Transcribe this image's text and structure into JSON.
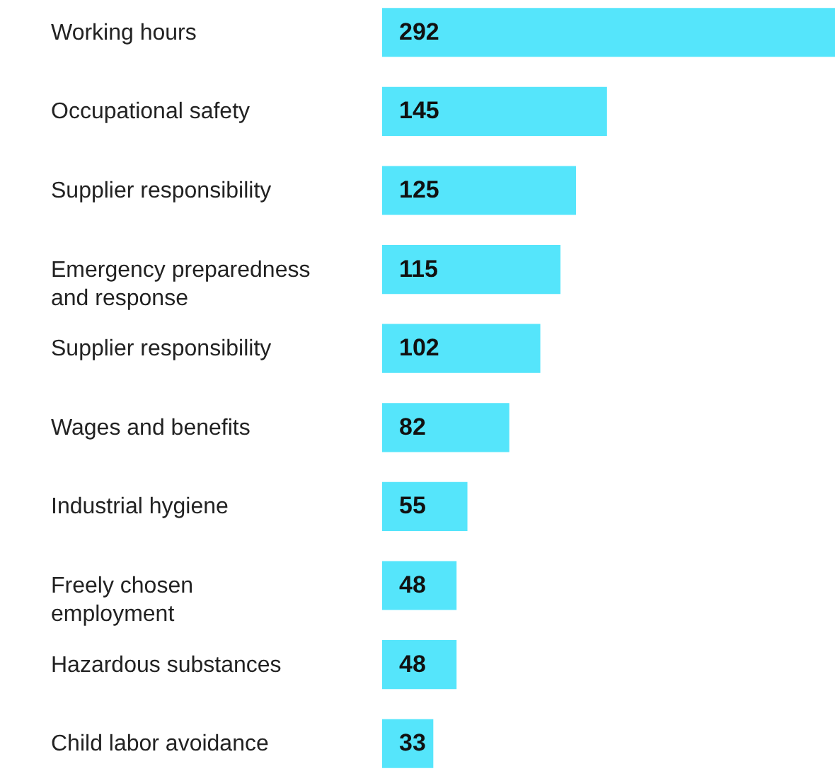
{
  "chart_data": {
    "type": "bar",
    "orientation": "horizontal",
    "data_labels": true,
    "categories": [
      "Working hours",
      "Occupational safety",
      "Supplier responsibility",
      "Emergency preparedness\nand response",
      "Supplier responsibility",
      "Wages and benefits",
      "Industrial hygiene",
      "Freely chosen\nemployment",
      "Hazardous substances",
      "Child labor avoidance"
    ],
    "values": [
      292,
      145,
      125,
      115,
      102,
      82,
      55,
      48,
      48,
      33
    ],
    "color": "#55e5fb"
  }
}
